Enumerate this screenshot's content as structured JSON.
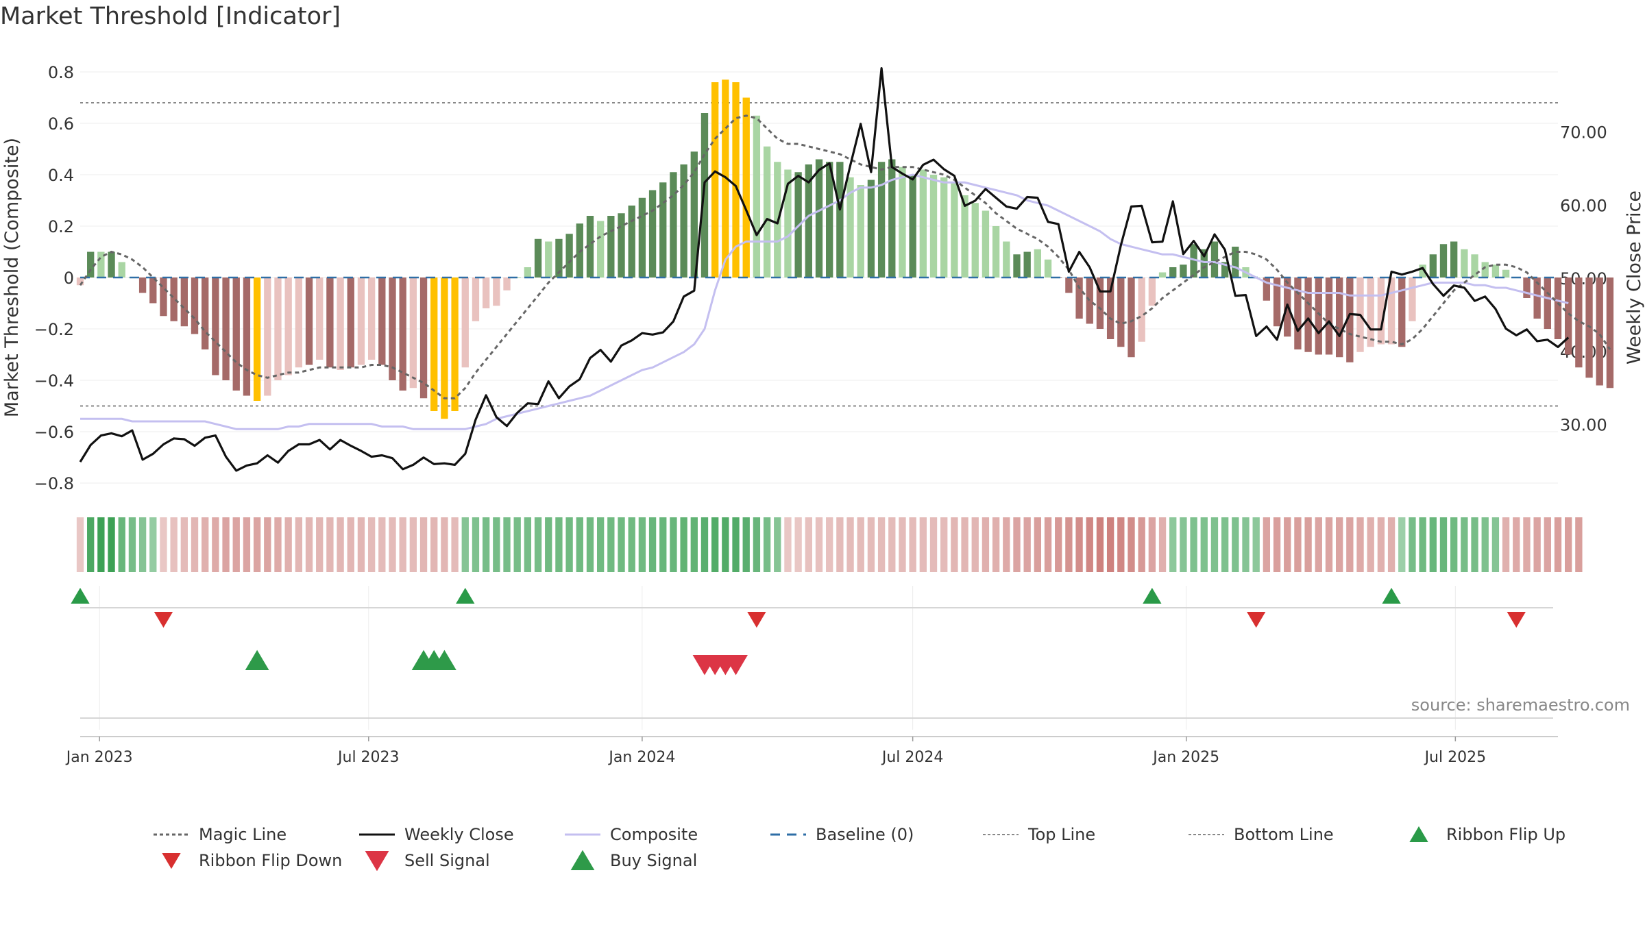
{
  "title": "Market Threshold [Indicator]",
  "source": "source: sharemaestro.com",
  "colors": {
    "magic": "#666666",
    "close": "#111111",
    "composite": "#c4bff0",
    "baseline": "#2e6ea6",
    "refline": "#888888",
    "bar_dark_green": "#5b8b58",
    "bar_light_green": "#a9d5a3",
    "bar_dark_red": "#a56a68",
    "bar_light_red": "#e9c2bf",
    "bar_signal": "#ffc000",
    "flip_up": "#2a9a48",
    "flip_down": "#d83030",
    "sell": "#dc3545",
    "buy": "#2e9a49"
  },
  "chart_data": {
    "type": "bar",
    "title": "Market Threshold [Indicator]",
    "ylabel": "Market Threshold (Composite)",
    "y2label": "Weekly Close Price",
    "ylim": [
      -0.84,
      0.84
    ],
    "y2lim": [
      20.6,
      79.6
    ],
    "xlim": [
      "2022-12-19",
      "2025-09-08"
    ],
    "yticks": [
      "0.8",
      "0.6",
      "0.4",
      "0.2",
      "0",
      "−0.2",
      "−0.4",
      "−0.6",
      "−0.8"
    ],
    "yticks_values": [
      0.8,
      0.6,
      0.4,
      0.2,
      0,
      -0.2,
      -0.4,
      -0.6,
      -0.8
    ],
    "y2ticks": [
      "70.00",
      "60.00",
      "50.00",
      "40.00",
      "30.00"
    ],
    "y2ticks_values": [
      70,
      60,
      50,
      40,
      30
    ],
    "xticks": [
      "Jan 2023",
      "Jul 2023",
      "Jan 2024",
      "Jul 2024",
      "Jan 2025",
      "Jul 2025"
    ],
    "xticks_dates": [
      "2023-01-01",
      "2023-07-01",
      "2024-01-01",
      "2024-07-01",
      "2025-01-01",
      "2025-07-01"
    ],
    "start_week": "2022-12-19",
    "top_line": 0.68,
    "bottom_line": -0.5,
    "baseline": 0,
    "bars": [
      -0.03,
      0.1,
      0.1,
      0.1,
      0.06,
      0.0,
      -0.06,
      -0.1,
      -0.15,
      -0.17,
      -0.19,
      -0.22,
      -0.28,
      -0.38,
      -0.4,
      -0.44,
      -0.46,
      -0.48,
      -0.46,
      -0.4,
      -0.38,
      -0.35,
      -0.34,
      -0.32,
      -0.35,
      -0.36,
      -0.35,
      -0.34,
      -0.32,
      -0.34,
      -0.4,
      -0.44,
      -0.43,
      -0.47,
      -0.52,
      -0.55,
      -0.52,
      -0.35,
      -0.17,
      -0.12,
      -0.11,
      -0.05,
      0.0,
      0.04,
      0.15,
      0.14,
      0.15,
      0.17,
      0.21,
      0.24,
      0.22,
      0.24,
      0.25,
      0.28,
      0.31,
      0.34,
      0.37,
      0.41,
      0.44,
      0.49,
      0.64,
      0.76,
      0.77,
      0.76,
      0.7,
      0.63,
      0.51,
      0.45,
      0.42,
      0.41,
      0.44,
      0.46,
      0.45,
      0.45,
      0.39,
      0.36,
      0.38,
      0.45,
      0.46,
      0.43,
      0.4,
      0.42,
      0.4,
      0.39,
      0.37,
      0.32,
      0.29,
      0.26,
      0.2,
      0.14,
      0.09,
      0.1,
      0.11,
      0.07,
      0.0,
      -0.06,
      -0.16,
      -0.18,
      -0.2,
      -0.24,
      -0.27,
      -0.31,
      -0.25,
      -0.11,
      0.02,
      0.04,
      0.05,
      0.13,
      0.11,
      0.14,
      0.06,
      0.12,
      0.04,
      0.0,
      -0.09,
      -0.19,
      -0.23,
      -0.28,
      -0.29,
      -0.3,
      -0.3,
      -0.31,
      -0.33,
      -0.29,
      -0.27,
      -0.26,
      -0.26,
      -0.27,
      -0.17,
      0.05,
      0.09,
      0.13,
      0.14,
      0.11,
      0.09,
      0.06,
      0.05,
      0.03,
      0.0,
      -0.08,
      -0.16,
      -0.2,
      -0.24,
      -0.3,
      -0.35,
      -0.39,
      -0.42,
      -0.43
    ],
    "bar_colors": [
      "light_red",
      "dark_green",
      "light_green",
      "dark_green",
      "light_green",
      "light_green",
      "dark_red",
      "dark_red",
      "dark_red",
      "dark_red",
      "dark_red",
      "dark_red",
      "dark_red",
      "dark_red",
      "dark_red",
      "dark_red",
      "dark_red",
      "signal",
      "light_red",
      "light_red",
      "light_red",
      "light_red",
      "dark_red",
      "light_red",
      "dark_red",
      "light_red",
      "dark_red",
      "light_red",
      "light_red",
      "dark_red",
      "dark_red",
      "dark_red",
      "light_red",
      "dark_red",
      "signal",
      "signal",
      "signal",
      "light_red",
      "light_red",
      "light_red",
      "light_red",
      "light_red",
      "light_green",
      "light_green",
      "dark_green",
      "light_green",
      "dark_green",
      "dark_green",
      "dark_green",
      "dark_green",
      "light_green",
      "dark_green",
      "dark_green",
      "dark_green",
      "dark_green",
      "dark_green",
      "dark_green",
      "dark_green",
      "dark_green",
      "dark_green",
      "dark_green",
      "signal",
      "signal",
      "signal",
      "signal",
      "light_green",
      "light_green",
      "light_green",
      "light_green",
      "dark_green",
      "dark_green",
      "dark_green",
      "dark_green",
      "dark_green",
      "light_green",
      "light_green",
      "dark_green",
      "dark_green",
      "dark_green",
      "light_green",
      "dark_green",
      "light_green",
      "light_green",
      "light_green",
      "light_green",
      "light_green",
      "light_green",
      "light_green",
      "light_green",
      "light_green",
      "dark_green",
      "dark_green",
      "light_green",
      "light_green",
      "dark_red",
      "dark_red",
      "dark_red",
      "dark_red",
      "dark_red",
      "dark_red",
      "dark_red",
      "dark_red",
      "light_red",
      "light_red",
      "light_green",
      "dark_green",
      "dark_green",
      "dark_green",
      "dark_green",
      "dark_green",
      "dark_green",
      "dark_green",
      "light_green",
      "light_green",
      "dark_red",
      "dark_red",
      "dark_red",
      "dark_red",
      "dark_red",
      "dark_red",
      "dark_red",
      "dark_red",
      "dark_red",
      "light_red",
      "light_red",
      "light_red",
      "light_red",
      "dark_red",
      "light_red",
      "light_green",
      "dark_green",
      "dark_green",
      "dark_green",
      "light_green",
      "light_green",
      "light_green",
      "light_green",
      "light_green",
      "dark_red",
      "dark_red",
      "dark_red",
      "dark_red",
      "dark_red",
      "dark_red",
      "dark_red",
      "dark_red",
      "dark_red",
      "dark_red"
    ],
    "weekly_close": [
      24.9,
      27.2,
      28.5,
      28.8,
      28.4,
      29.2,
      25.2,
      26.0,
      27.3,
      28.1,
      28.0,
      27.1,
      28.2,
      28.5,
      25.6,
      23.7,
      24.4,
      24.7,
      25.8,
      24.8,
      26.4,
      27.3,
      27.3,
      27.9,
      26.6,
      27.9,
      27.1,
      26.4,
      25.6,
      25.8,
      25.4,
      23.9,
      24.5,
      25.5,
      24.6,
      24.7,
      24.5,
      26.0,
      30.7,
      34.0,
      31.0,
      29.8,
      31.6,
      32.9,
      32.8,
      35.9,
      33.6,
      35.2,
      36.2,
      39.1,
      40.2,
      38.6,
      40.8,
      41.5,
      42.5,
      42.3,
      42.6,
      44.1,
      47.5,
      48.3,
      63.1,
      64.6,
      63.8,
      62.6,
      59.3,
      55.9,
      58.1,
      57.5,
      62.9,
      64.0,
      63.1,
      64.8,
      65.7,
      59.4,
      65.4,
      71.1,
      64.5,
      78.7,
      65.2,
      64.3,
      63.5,
      65.5,
      66.2,
      64.9,
      64.0,
      59.9,
      60.6,
      62.2,
      61.0,
      59.8,
      59.5,
      61.1,
      61.0,
      57.7,
      57.4,
      50.9,
      53.6,
      51.5,
      48.2,
      48.2,
      54.5,
      59.8,
      59.9,
      54.9,
      55.0,
      60.5,
      53.3,
      55.1,
      53.0,
      56.0,
      53.9,
      47.6,
      47.7,
      42.1,
      43.4,
      41.6,
      46.4,
      42.8,
      44.5,
      42.5,
      44.1,
      42.1,
      45.1,
      45.0,
      43.0,
      43.0,
      50.9,
      50.5,
      50.9,
      51.4,
      49.2,
      47.6,
      49.0,
      48.7,
      46.9,
      47.5,
      45.8,
      43.1,
      42.2,
      43.0,
      41.4,
      41.6,
      40.6,
      41.9
    ],
    "composite": [
      -0.55,
      -0.55,
      -0.55,
      -0.55,
      -0.55,
      -0.56,
      -0.56,
      -0.56,
      -0.56,
      -0.56,
      -0.56,
      -0.56,
      -0.56,
      -0.57,
      -0.58,
      -0.59,
      -0.59,
      -0.59,
      -0.59,
      -0.59,
      -0.58,
      -0.58,
      -0.57,
      -0.57,
      -0.57,
      -0.57,
      -0.57,
      -0.57,
      -0.57,
      -0.58,
      -0.58,
      -0.58,
      -0.59,
      -0.59,
      -0.59,
      -0.59,
      -0.59,
      -0.59,
      -0.58,
      -0.57,
      -0.55,
      -0.54,
      -0.53,
      -0.52,
      -0.51,
      -0.5,
      -0.49,
      -0.48,
      -0.47,
      -0.46,
      -0.44,
      -0.42,
      -0.4,
      -0.38,
      -0.36,
      -0.35,
      -0.33,
      -0.31,
      -0.29,
      -0.26,
      -0.2,
      -0.05,
      0.07,
      0.12,
      0.14,
      0.14,
      0.14,
      0.14,
      0.16,
      0.2,
      0.24,
      0.26,
      0.28,
      0.3,
      0.33,
      0.35,
      0.35,
      0.36,
      0.38,
      0.39,
      0.4,
      0.39,
      0.38,
      0.37,
      0.37,
      0.37,
      0.36,
      0.35,
      0.34,
      0.33,
      0.32,
      0.3,
      0.29,
      0.28,
      0.26,
      0.24,
      0.22,
      0.2,
      0.18,
      0.15,
      0.13,
      0.12,
      0.11,
      0.1,
      0.09,
      0.09,
      0.08,
      0.07,
      0.06,
      0.06,
      0.05,
      0.04,
      0.02,
      0.0,
      -0.02,
      -0.03,
      -0.04,
      -0.05,
      -0.06,
      -0.06,
      -0.06,
      -0.06,
      -0.07,
      -0.07,
      -0.07,
      -0.07,
      -0.06,
      -0.05,
      -0.04,
      -0.03,
      -0.02,
      -0.02,
      -0.02,
      -0.02,
      -0.03,
      -0.03,
      -0.04,
      -0.04,
      -0.05,
      -0.06,
      -0.07,
      -0.08,
      -0.09,
      -0.1
    ],
    "magic_line": [
      -0.03,
      0.03,
      0.08,
      0.1,
      0.09,
      0.07,
      0.04,
      0.0,
      -0.04,
      -0.08,
      -0.12,
      -0.16,
      -0.21,
      -0.25,
      -0.29,
      -0.33,
      -0.36,
      -0.38,
      -0.39,
      -0.38,
      -0.37,
      -0.37,
      -0.36,
      -0.35,
      -0.35,
      -0.35,
      -0.35,
      -0.35,
      -0.34,
      -0.34,
      -0.35,
      -0.37,
      -0.39,
      -0.41,
      -0.44,
      -0.47,
      -0.47,
      -0.43,
      -0.37,
      -0.32,
      -0.27,
      -0.22,
      -0.17,
      -0.12,
      -0.07,
      -0.02,
      0.02,
      0.06,
      0.1,
      0.13,
      0.16,
      0.18,
      0.2,
      0.22,
      0.24,
      0.26,
      0.29,
      0.32,
      0.36,
      0.41,
      0.48,
      0.54,
      0.58,
      0.62,
      0.63,
      0.62,
      0.58,
      0.54,
      0.52,
      0.52,
      0.51,
      0.5,
      0.49,
      0.48,
      0.46,
      0.44,
      0.43,
      0.42,
      0.43,
      0.43,
      0.43,
      0.42,
      0.41,
      0.4,
      0.38,
      0.35,
      0.32,
      0.29,
      0.25,
      0.22,
      0.19,
      0.17,
      0.15,
      0.12,
      0.08,
      0.03,
      -0.04,
      -0.09,
      -0.12,
      -0.16,
      -0.18,
      -0.17,
      -0.15,
      -0.12,
      -0.08,
      -0.05,
      -0.02,
      0.01,
      0.04,
      0.06,
      0.08,
      0.1,
      0.1,
      0.09,
      0.07,
      0.03,
      -0.02,
      -0.06,
      -0.1,
      -0.14,
      -0.18,
      -0.2,
      -0.22,
      -0.23,
      -0.24,
      -0.25,
      -0.25,
      -0.26,
      -0.24,
      -0.2,
      -0.15,
      -0.1,
      -0.05,
      -0.02,
      0.01,
      0.04,
      0.05,
      0.05,
      0.04,
      0.02,
      -0.02,
      -0.06,
      -0.1,
      -0.14,
      -0.17,
      -0.19,
      -0.22,
      -0.28
    ],
    "ribbon": [
      "red",
      "green",
      "green",
      "green",
      "green",
      "green",
      "green",
      "green",
      "red",
      "red",
      "red",
      "red",
      "red",
      "red",
      "red",
      "red",
      "red",
      "red",
      "red",
      "red",
      "red",
      "red",
      "red",
      "red",
      "red",
      "red",
      "red",
      "red",
      "red",
      "red",
      "red",
      "red",
      "red",
      "red",
      "red",
      "red",
      "red",
      "green",
      "green",
      "green",
      "green",
      "green",
      "green",
      "green",
      "green",
      "green",
      "green",
      "green",
      "green",
      "green",
      "green",
      "green",
      "green",
      "green",
      "green",
      "green",
      "green",
      "green",
      "green",
      "green",
      "green",
      "green",
      "green",
      "green",
      "green",
      "green",
      "green",
      "green",
      "red",
      "red",
      "red",
      "red",
      "red",
      "red",
      "red",
      "red",
      "red",
      "red",
      "red",
      "red",
      "red",
      "red",
      "red",
      "red",
      "red",
      "red",
      "red",
      "red",
      "red",
      "red",
      "red",
      "red",
      "red",
      "red",
      "red",
      "red",
      "red",
      "red",
      "red",
      "red",
      "red",
      "red",
      "red",
      "red",
      "red",
      "green",
      "green",
      "green",
      "green",
      "green",
      "green",
      "green",
      "green",
      "green",
      "red",
      "red",
      "red",
      "red",
      "red",
      "red",
      "red",
      "red",
      "red",
      "red",
      "red",
      "red",
      "red",
      "green",
      "green",
      "green",
      "green",
      "green",
      "green",
      "green",
      "green",
      "green",
      "green",
      "red",
      "red",
      "red",
      "red",
      "red",
      "red",
      "red",
      "red"
    ],
    "ribbon_strength": [
      0.2,
      0.8,
      0.9,
      0.9,
      0.6,
      0.5,
      0.4,
      0.3,
      0.2,
      0.25,
      0.3,
      0.35,
      0.4,
      0.45,
      0.5,
      0.5,
      0.5,
      0.5,
      0.5,
      0.45,
      0.4,
      0.35,
      0.35,
      0.35,
      0.35,
      0.35,
      0.35,
      0.35,
      0.3,
      0.3,
      0.3,
      0.3,
      0.3,
      0.35,
      0.35,
      0.35,
      0.3,
      0.4,
      0.45,
      0.5,
      0.5,
      0.5,
      0.5,
      0.5,
      0.5,
      0.55,
      0.55,
      0.55,
      0.55,
      0.55,
      0.55,
      0.55,
      0.55,
      0.55,
      0.55,
      0.6,
      0.6,
      0.6,
      0.65,
      0.65,
      0.7,
      0.75,
      0.75,
      0.75,
      0.7,
      0.6,
      0.5,
      0.4,
      0.2,
      0.2,
      0.25,
      0.25,
      0.25,
      0.3,
      0.3,
      0.3,
      0.3,
      0.3,
      0.3,
      0.3,
      0.3,
      0.3,
      0.3,
      0.3,
      0.35,
      0.35,
      0.35,
      0.4,
      0.4,
      0.45,
      0.5,
      0.5,
      0.55,
      0.55,
      0.6,
      0.65,
      0.7,
      0.75,
      0.8,
      0.8,
      0.75,
      0.7,
      0.6,
      0.5,
      0.4,
      0.35,
      0.4,
      0.45,
      0.45,
      0.45,
      0.45,
      0.45,
      0.4,
      0.35,
      0.5,
      0.55,
      0.55,
      0.55,
      0.55,
      0.5,
      0.5,
      0.5,
      0.5,
      0.45,
      0.4,
      0.4,
      0.4,
      0.25,
      0.5,
      0.55,
      0.6,
      0.6,
      0.55,
      0.5,
      0.5,
      0.45,
      0.4,
      0.4,
      0.45,
      0.45,
      0.5,
      0.5,
      0.55,
      0.55,
      0.55,
      0.6
    ],
    "ribbon_flip_up": [
      "2022-12-19",
      "2023-09-04",
      "2024-12-09",
      "2025-05-19"
    ],
    "ribbon_flip_down": [
      "2023-02-13",
      "2024-03-18",
      "2025-02-17",
      "2025-08-11"
    ],
    "buy_signal": [
      "2023-04-17",
      "2023-08-07",
      "2023-08-14",
      "2023-08-21"
    ],
    "sell_signal": [
      "2024-02-12",
      "2024-02-19",
      "2024-02-26",
      "2024-03-04"
    ],
    "legend": [
      {
        "key": "magic",
        "label": "Magic Line"
      },
      {
        "key": "close",
        "label": "Weekly Close"
      },
      {
        "key": "composite",
        "label": "Composite"
      },
      {
        "key": "baseline",
        "label": "Baseline (0)"
      },
      {
        "key": "top",
        "label": "Top Line"
      },
      {
        "key": "bottom",
        "label": "Bottom Line"
      },
      {
        "key": "flip_up",
        "label": "Ribbon Flip Up"
      },
      {
        "key": "flip_down",
        "label": "Ribbon Flip Down"
      },
      {
        "key": "sell",
        "label": "Sell Signal"
      },
      {
        "key": "buy",
        "label": "Buy Signal"
      }
    ],
    "grid": true,
    "legend_position": "bottom"
  }
}
